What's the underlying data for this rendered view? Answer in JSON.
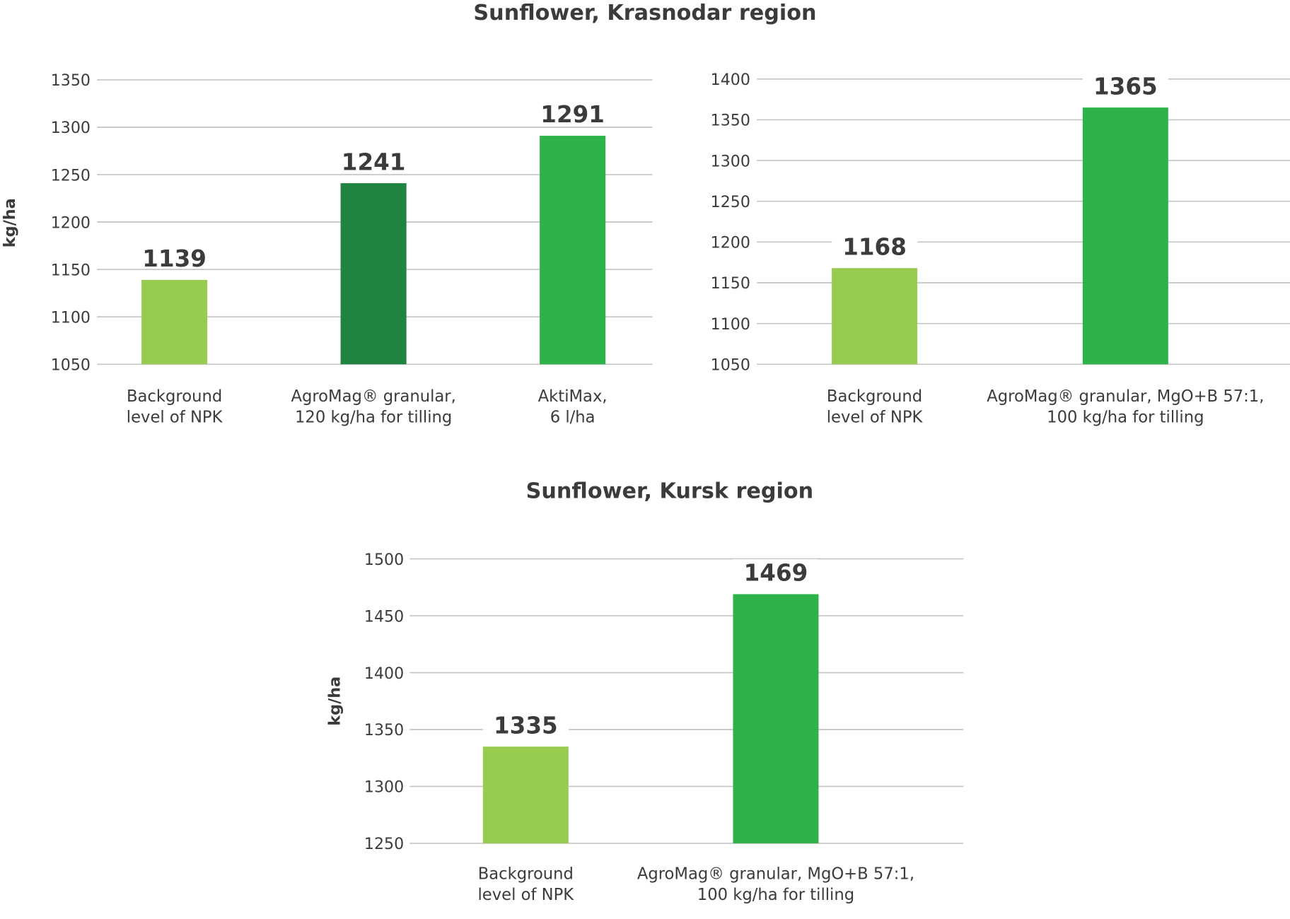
{
  "titles": [
    "Sunflower, Krasnodar region",
    "Sunflower, Kursk region"
  ],
  "colors": {
    "light_green": "#97cc50",
    "dark_green": "#218341",
    "green": "#2db34a",
    "text": "#3b3b3b",
    "grid": "#c4c4c4"
  },
  "chart_data": [
    {
      "type": "bar",
      "title": "Sunflower, Krasnodar region",
      "ylabel": "kg/ha",
      "ylim": [
        1050,
        1350
      ],
      "yticks": [
        1050,
        1100,
        1150,
        1200,
        1250,
        1300,
        1350
      ],
      "grid": true,
      "categories": [
        [
          "Background",
          "level of NPK"
        ],
        [
          "AgroMag® granular,",
          "120 kg/ha for tilling"
        ],
        [
          "AktiMax,",
          "6 l/ha"
        ]
      ],
      "values": [
        1139,
        1241,
        1291
      ],
      "bar_colors": [
        "#97cc50",
        "#218341",
        "#2db34a"
      ]
    },
    {
      "type": "bar",
      "title": "Sunflower, Krasnodar region",
      "ylabel": "",
      "ylim": [
        1050,
        1400
      ],
      "yticks": [
        1050,
        1100,
        1150,
        1200,
        1250,
        1300,
        1350,
        1400
      ],
      "grid": true,
      "categories": [
        [
          "Background",
          "level of NPK"
        ],
        [
          "AgroMag® granular, MgO+B 57:1,",
          "100 kg/ha for tilling"
        ]
      ],
      "values": [
        1168,
        1365
      ],
      "bar_colors": [
        "#97cc50",
        "#2db34a"
      ]
    },
    {
      "type": "bar",
      "title": "Sunflower, Kursk region",
      "ylabel": "kg/ha",
      "ylim": [
        1250,
        1500
      ],
      "yticks": [
        1250,
        1300,
        1350,
        1400,
        1450,
        1500
      ],
      "grid": true,
      "categories": [
        [
          "Background",
          "level of NPK"
        ],
        [
          "AgroMag® granular, MgO+B 57:1,",
          "100 kg/ha for tilling"
        ]
      ],
      "values": [
        1335,
        1469
      ],
      "bar_colors": [
        "#97cc50",
        "#2db34a"
      ]
    }
  ]
}
